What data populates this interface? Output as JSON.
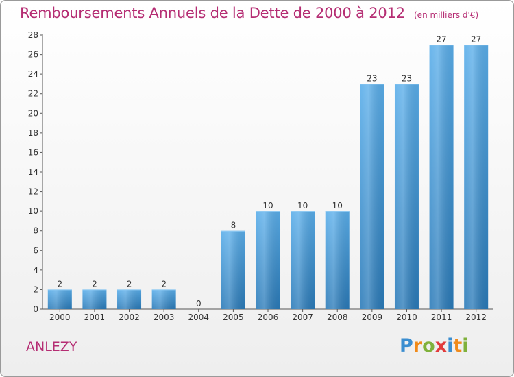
{
  "header": {
    "title": "Remboursements Annuels de la Dette de 2000 à 2012",
    "subtitle": "(en milliers d'€)"
  },
  "footer": {
    "commune": "ANLEZY",
    "logo_text": "Proxiti"
  },
  "colors": {
    "title": "#b52d73",
    "bar_top": "#5aaeea",
    "bar_bottom": "#2a7ab8",
    "logo_letters": [
      "#3b8ed0",
      "#f08a1a",
      "#7fb13b",
      "#e23b3b",
      "#3b8ed0",
      "#f08a1a",
      "#7fb13b"
    ]
  },
  "chart_data": {
    "type": "bar",
    "title": "Remboursements Annuels de la Dette de 2000 à 2012",
    "subtitle": "(en milliers d'€)",
    "categories": [
      "2000",
      "2001",
      "2002",
      "2003",
      "2004",
      "2005",
      "2006",
      "2007",
      "2008",
      "2009",
      "2010",
      "2011",
      "2012"
    ],
    "values": [
      2,
      2,
      2,
      2,
      0,
      8,
      10,
      10,
      10,
      23,
      23,
      27,
      27
    ],
    "data_labels": [
      "2",
      "2",
      "2",
      "2",
      "0",
      "8",
      "10",
      "10",
      "10",
      "23",
      "23",
      "27",
      "27"
    ],
    "ylim": [
      0,
      28
    ],
    "yticks": [
      0,
      2,
      4,
      6,
      8,
      10,
      12,
      14,
      16,
      18,
      20,
      22,
      24,
      26,
      28
    ],
    "grid": false,
    "xlabel": "",
    "ylabel": ""
  }
}
